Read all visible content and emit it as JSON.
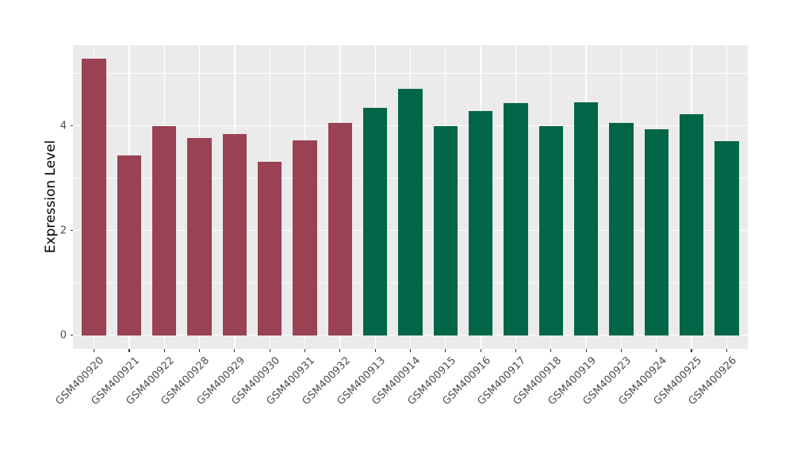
{
  "chart_data": {
    "type": "bar",
    "title": "",
    "xlabel": "",
    "ylabel": "Expression Level",
    "yticks": [
      0,
      2,
      4
    ],
    "ylim": [
      -0.26,
      5.54
    ],
    "grid": true,
    "legend_position": "none",
    "plot_background_color": "#EBEBEB",
    "grid_color": "#FFFFFF",
    "axis_text_color": "#4D4D4D",
    "group_colors": {
      "maroon": "#9A4254",
      "green": "#006647"
    },
    "categories": [
      "GSM400920",
      "GSM400921",
      "GSM400922",
      "GSM400928",
      "GSM400929",
      "GSM400930",
      "GSM400931",
      "GSM400932",
      "GSM400913",
      "GSM400914",
      "GSM400915",
      "GSM400916",
      "GSM400917",
      "GSM400918",
      "GSM400919",
      "GSM400923",
      "GSM400924",
      "GSM400925",
      "GSM400926"
    ],
    "values": [
      5.28,
      3.43,
      3.99,
      3.77,
      3.85,
      3.32,
      3.73,
      4.05,
      4.34,
      4.7,
      4.0,
      4.28,
      4.44,
      4.0,
      4.45,
      4.05,
      3.94,
      4.22,
      3.71
    ],
    "groups": [
      "maroon",
      "maroon",
      "maroon",
      "maroon",
      "maroon",
      "maroon",
      "maroon",
      "maroon",
      "green",
      "green",
      "green",
      "green",
      "green",
      "green",
      "green",
      "green",
      "green",
      "green",
      "green"
    ]
  }
}
